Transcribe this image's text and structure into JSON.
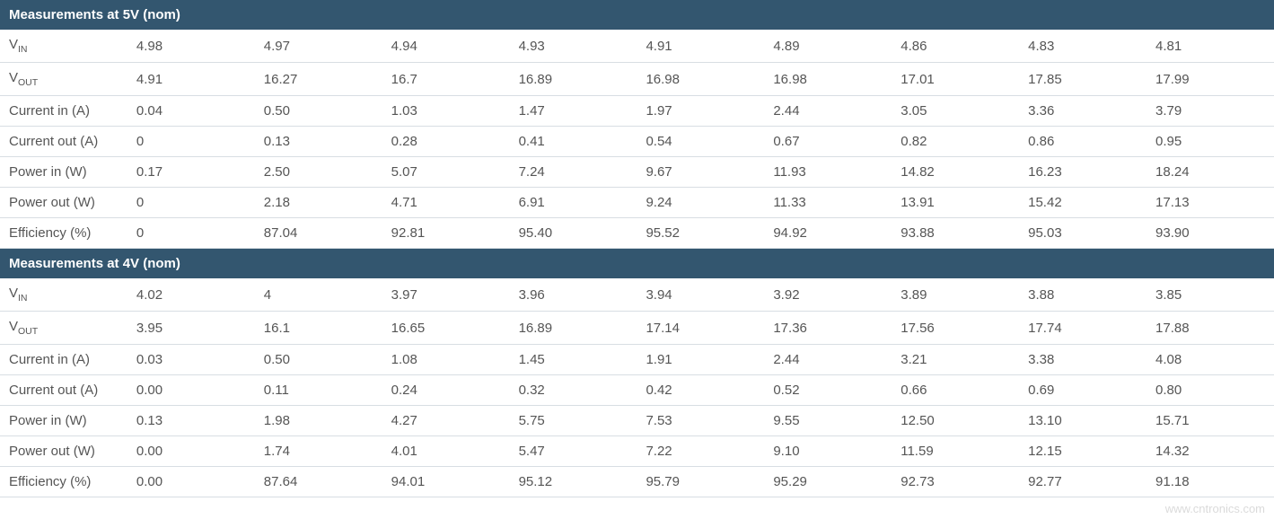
{
  "table": {
    "header_bg": "#33566f",
    "header_color": "#ffffff",
    "cell_border": "#d8dee3",
    "cell_color": "#555555",
    "label_col_width": 280,
    "sections": [
      {
        "title": "Measurements at 5V (nom)",
        "rows": [
          {
            "label_html": "V<sub>IN</sub>",
            "label": "VIN",
            "values": [
              "4.98",
              "4.97",
              "4.94",
              "4.93",
              "4.91",
              "4.89",
              "4.86",
              "4.83",
              "4.81"
            ]
          },
          {
            "label_html": "V<sub>OUT</sub>",
            "label": "VOUT",
            "values": [
              "4.91",
              "16.27",
              "16.7",
              "16.89",
              "16.98",
              "16.98",
              "17.01",
              "17.85",
              "17.99"
            ]
          },
          {
            "label_html": "Current in (A)",
            "label": "Current in (A)",
            "values": [
              "0.04",
              "0.50",
              "1.03",
              "1.47",
              "1.97",
              "2.44",
              "3.05",
              "3.36",
              "3.79"
            ]
          },
          {
            "label_html": "Current out (A)",
            "label": "Current out (A)",
            "values": [
              "0",
              "0.13",
              "0.28",
              "0.41",
              "0.54",
              "0.67",
              "0.82",
              "0.86",
              "0.95"
            ]
          },
          {
            "label_html": "Power in (W)",
            "label": "Power in (W)",
            "values": [
              "0.17",
              "2.50",
              "5.07",
              "7.24",
              "9.67",
              "11.93",
              "14.82",
              "16.23",
              "18.24"
            ]
          },
          {
            "label_html": "Power out (W)",
            "label": "Power out (W)",
            "values": [
              "0",
              "2.18",
              "4.71",
              "6.91",
              "9.24",
              "11.33",
              "13.91",
              "15.42",
              "17.13"
            ]
          },
          {
            "label_html": "Efficiency (%)",
            "label": "Efficiency (%)",
            "values": [
              "0",
              "87.04",
              "92.81",
              "95.40",
              "95.52",
              "94.92",
              "93.88",
              "95.03",
              "93.90"
            ]
          }
        ]
      },
      {
        "title": "Measurements at 4V (nom)",
        "rows": [
          {
            "label_html": "V<sub>IN</sub>",
            "label": "VIN",
            "values": [
              "4.02",
              "4",
              "3.97",
              "3.96",
              "3.94",
              "3.92",
              "3.89",
              "3.88",
              "3.85"
            ]
          },
          {
            "label_html": "V<sub>OUT</sub>",
            "label": "VOUT",
            "values": [
              "3.95",
              "16.1",
              "16.65",
              "16.89",
              "17.14",
              "17.36",
              "17.56",
              "17.74",
              "17.88"
            ]
          },
          {
            "label_html": "Current in (A)",
            "label": "Current in (A)",
            "values": [
              "0.03",
              "0.50",
              "1.08",
              "1.45",
              "1.91",
              "2.44",
              "3.21",
              "3.38",
              "4.08"
            ]
          },
          {
            "label_html": "Current out (A)",
            "label": "Current out (A)",
            "values": [
              "0.00",
              "0.11",
              "0.24",
              "0.32",
              "0.42",
              "0.52",
              "0.66",
              "0.69",
              "0.80"
            ]
          },
          {
            "label_html": "Power in (W)",
            "label": "Power in (W)",
            "values": [
              "0.13",
              "1.98",
              "4.27",
              "5.75",
              "7.53",
              "9.55",
              "12.50",
              "13.10",
              "15.71"
            ]
          },
          {
            "label_html": "Power out (W)",
            "label": "Power out (W)",
            "values": [
              "0.00",
              "1.74",
              "4.01",
              "5.47",
              "7.22",
              "9.10",
              "11.59",
              "12.15",
              "14.32"
            ]
          },
          {
            "label_html": "Efficiency (%)",
            "label": "Efficiency (%)",
            "values": [
              "0.00",
              "87.64",
              "94.01",
              "95.12",
              "95.79",
              "95.29",
              "92.73",
              "92.77",
              "91.18"
            ]
          }
        ]
      }
    ]
  },
  "watermark": "www.cntronics.com"
}
